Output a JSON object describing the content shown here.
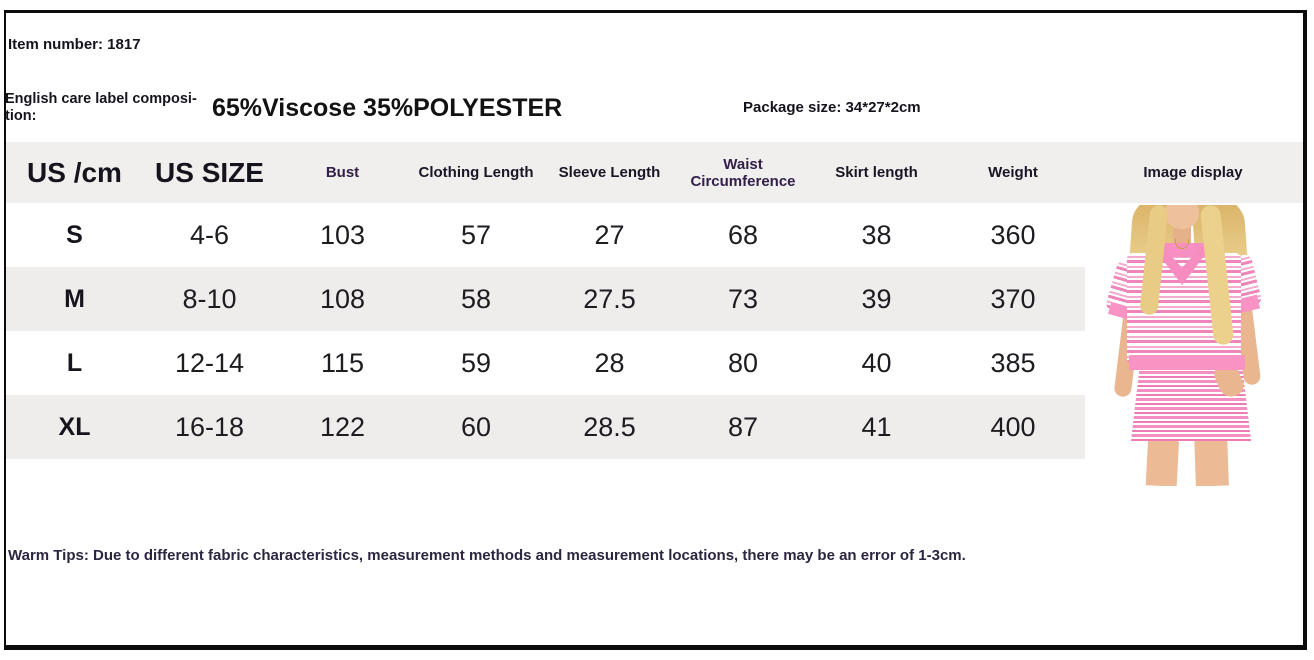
{
  "header": {
    "item_number": "Item number: 1817",
    "care_label_line1": "English care label composi-",
    "care_label_line2": "tion:",
    "composition": "65%Viscose 35%POLYESTER",
    "package_size": "Package size: 34*27*2cm"
  },
  "table": {
    "columns": [
      "US /cm",
      "US SIZE",
      "Bust",
      "Clothing Length",
      "Sleeve Length",
      "Waist Circumference",
      "Skirt length",
      "Weight",
      "Image display"
    ],
    "rows": [
      {
        "cells": [
          "S",
          "4-6",
          "103",
          "57",
          "27",
          "68",
          "38",
          "360"
        ]
      },
      {
        "cells": [
          "M",
          "8-10",
          "108",
          "58",
          "27.5",
          "73",
          "39",
          "370"
        ]
      },
      {
        "cells": [
          "L",
          "12-14",
          "115",
          "59",
          "28",
          "80",
          "40",
          "385"
        ]
      },
      {
        "cells": [
          "XL",
          "16-18",
          "122",
          "60",
          "28.5",
          "87",
          "41",
          "400"
        ]
      }
    ]
  },
  "footer": {
    "warm_tips": "Warm Tips: Due to different fabric characteristics, measurement methods and measurement locations, there may be an error of 1-3cm."
  },
  "photo": {
    "description": "Model wearing pink and white striped short-sleeve collared top and matching striped mini skirt",
    "colors": {
      "pink_accent": "#f78fc2",
      "stripe_pink": "#ee7cb4",
      "header_bg": "#f1efee",
      "zebra_bg": "#efedec",
      "tips_text": "#2c2640"
    }
  }
}
